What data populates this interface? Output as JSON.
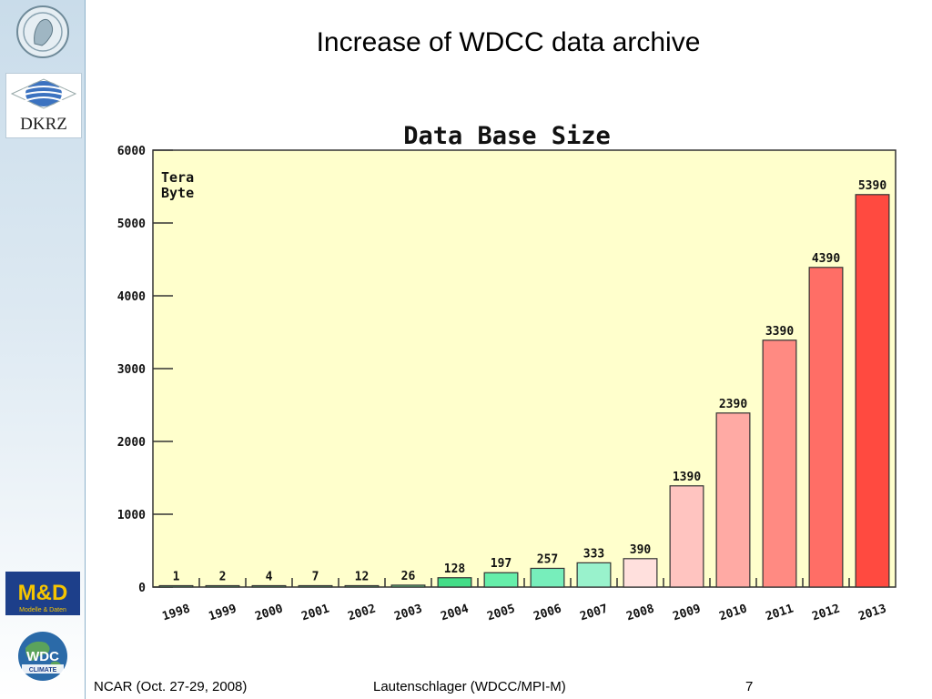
{
  "slide": {
    "title": "Increase of WDCC data archive",
    "footer_left": "NCAR (Oct. 27-29, 2008)",
    "footer_center": "Lautenschlager (WDCC/MPI-M)",
    "page_number": "7"
  },
  "logos": {
    "dkrz": "DKRZ",
    "md": "M&D",
    "md_sub": "Modelle & Daten",
    "wdc": "WDC",
    "wdc_sub": "CLIMATE"
  },
  "chart_data": {
    "type": "bar",
    "title": "Data Base Size",
    "ylabel": "Tera Byte",
    "xlabel": "",
    "categories": [
      "1998",
      "1999",
      "2000",
      "2001",
      "2002",
      "2003",
      "2004",
      "2005",
      "2006",
      "2007",
      "2008",
      "2009",
      "2010",
      "2011",
      "2012",
      "2013"
    ],
    "values": [
      1,
      2,
      4,
      7,
      12,
      26,
      128,
      197,
      257,
      333,
      390,
      1390,
      2390,
      3390,
      4390,
      5390
    ],
    "ylim": [
      0,
      6000
    ],
    "yticks": [
      0,
      1000,
      2000,
      3000,
      4000,
      5000,
      6000
    ],
    "grid": false,
    "colors": {
      "plot_background": "#ffffcc",
      "bars": [
        "#66cc88",
        "#66cc88",
        "#66cc88",
        "#66cc88",
        "#66cc88",
        "#66cc88",
        "#44dd88",
        "#66eeaa",
        "#77eebb",
        "#99f2cc",
        "#ffe0dd",
        "#ffc4c0",
        "#ffaaa4",
        "#ff8a82",
        "#ff6e66",
        "#ff4a40"
      ]
    }
  }
}
